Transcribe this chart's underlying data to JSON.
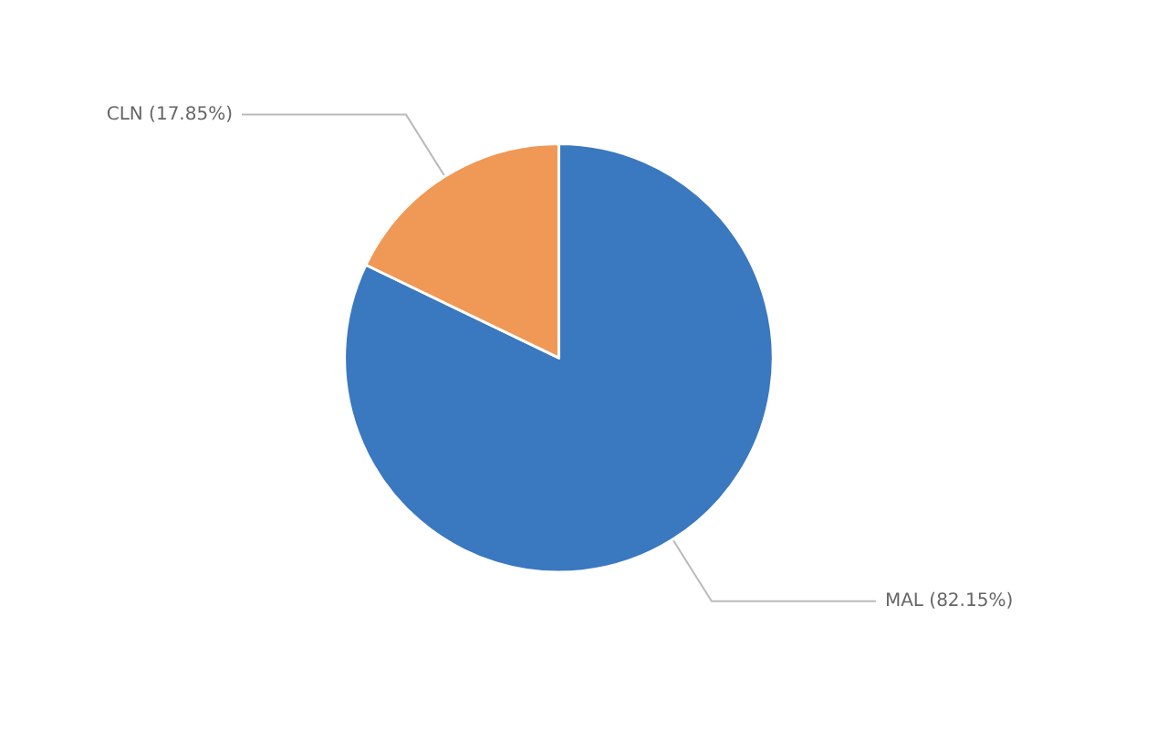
{
  "chart_data": {
    "type": "pie",
    "categories": [
      "MAL",
      "CLN"
    ],
    "values": [
      82.15,
      17.85
    ],
    "colors": [
      "#3a78c0",
      "#f09856"
    ],
    "value_labels": [
      "(82.15%)",
      "(17.85%)"
    ],
    "legend": false
  }
}
